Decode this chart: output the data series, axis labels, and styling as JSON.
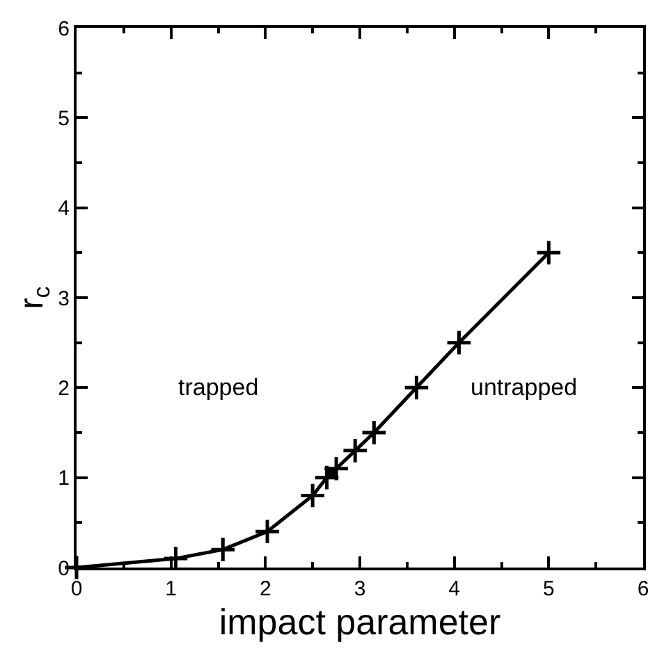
{
  "chart_data": {
    "type": "line",
    "xlabel": "impact parameter",
    "ylabel": "r$_{c}$",
    "xlim": [
      0,
      6
    ],
    "ylim": [
      0,
      6
    ],
    "xticks": [
      0,
      1,
      2,
      3,
      4,
      5,
      6
    ],
    "yticks": [
      0,
      1,
      2,
      3,
      4,
      5,
      6
    ],
    "marker": "cross",
    "line_style": "solid",
    "series": [
      {
        "color": "#000000",
        "x": [
          0,
          1.05,
          1.55,
          2.02,
          2.5,
          2.65,
          2.75,
          2.95,
          3.15,
          3.6,
          4.05,
          5.0
        ],
        "values": [
          0,
          0.1,
          0.2,
          0.4,
          0.8,
          1.0,
          1.1,
          1.3,
          1.5,
          2.0,
          2.5,
          3.5
        ]
      },
      {
        "type": "scatter",
        "marker": "circle",
        "color": "#000000",
        "x": [
          2.7
        ],
        "values": [
          1.05
        ]
      }
    ],
    "annotations": [
      "trapped",
      "untrapped"
    ]
  }
}
